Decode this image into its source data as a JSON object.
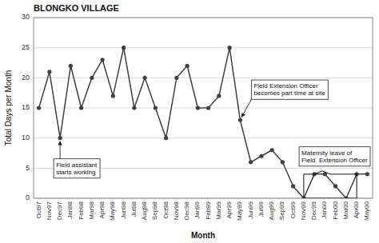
{
  "chart_data": {
    "type": "line",
    "title": "BLONGKO VILLAGE",
    "xlabel": "Month",
    "ylabel": "Total Days per Month",
    "categories": [
      "Oct97",
      "Nov97",
      "Dec97",
      "Jan98",
      "Feb98",
      "Mar98",
      "Apr98",
      "May98",
      "Jun98",
      "Jul98",
      "Aug98",
      "Sep98",
      "Oct98",
      "Nov98",
      "Dec98",
      "Jan99",
      "Feb99",
      "Mar99",
      "Apr99",
      "May99",
      "Jun99",
      "Jul99",
      "Aug99",
      "Sep99",
      "Oct99",
      "Nov99",
      "Dec99",
      "Jan00",
      "Feb00",
      "Mar00",
      "Apr00",
      "May00"
    ],
    "values": [
      15,
      21,
      10,
      22,
      15,
      20,
      23,
      17,
      25,
      15,
      20,
      15,
      10,
      20,
      22,
      15,
      15,
      17,
      25,
      13,
      6,
      7,
      8,
      6,
      2,
      0,
      4,
      4,
      2,
      0,
      4,
      4
    ],
    "color": "#404040",
    "marker": "circle",
    "ylim": [
      0,
      30
    ],
    "yticks": [
      0,
      5,
      10,
      15,
      20,
      25,
      30
    ],
    "grid": true,
    "annotations": [
      {
        "text": "Field assistant\nstarts working",
        "x": "Dec97",
        "y": 10
      },
      {
        "text": "Field Extension Officer\nbecomes part time at site",
        "x": "May99",
        "y": 13
      },
      {
        "text": "Maternity leave of\nField  Extension Officer",
        "x": [
          "Nov99",
          "Apr00"
        ],
        "y": [
          0,
          4
        ]
      }
    ]
  }
}
